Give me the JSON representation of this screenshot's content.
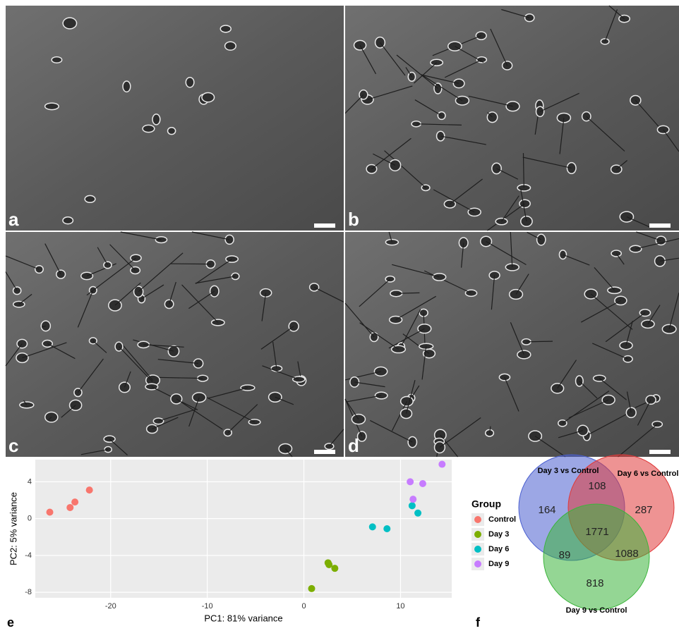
{
  "micrographs": [
    {
      "label": "a"
    },
    {
      "label": "b"
    },
    {
      "label": "c"
    },
    {
      "label": "d"
    }
  ],
  "chart_data": [
    {
      "type": "scatter",
      "panel_label": "e",
      "x_label": "PC1: 81% variance",
      "y_label": "PC2: 5% variance",
      "legend_title": "Group",
      "legend": "right",
      "grid": true,
      "xlim": [
        -27.8,
        15.3
      ],
      "xticks": [
        -20,
        -10,
        0,
        10
      ],
      "ylim": [
        -8.6,
        6.4
      ],
      "yticks": [
        -8,
        -4,
        0,
        4
      ],
      "series": [
        {
          "name": "Control",
          "color": "#F8766D",
          "x": [
            -26.3,
            -24.2,
            -23.7,
            -22.2
          ],
          "values": [
            0.7,
            1.2,
            1.8,
            3.1
          ]
        },
        {
          "name": "Day 3",
          "color": "#7CAE00",
          "x": [
            0.8,
            2.5,
            2.6,
            3.2
          ],
          "values": [
            -7.6,
            -4.8,
            -5.0,
            -5.4
          ]
        },
        {
          "name": "Day 6",
          "color": "#00BFC4",
          "x": [
            7.1,
            8.6,
            11.2,
            11.8
          ],
          "values": [
            -0.9,
            -1.1,
            1.4,
            0.6
          ]
        },
        {
          "name": "Day 9",
          "color": "#C77CFF",
          "x": [
            11.0,
            11.3,
            12.3,
            14.3
          ],
          "values": [
            4.0,
            2.1,
            3.8,
            5.9
          ]
        }
      ]
    },
    {
      "type": "venn",
      "panel_label": "f",
      "sets": [
        {
          "name": "Day 3 vs Control",
          "color": "#4a5fd0"
        },
        {
          "name": "Day 6 vs Control",
          "color": "#e03a3a"
        },
        {
          "name": "Day 9 vs Control",
          "color": "#3cb43c"
        }
      ],
      "values": [
        164,
        287,
        818,
        108,
        89,
        1088,
        1771
      ]
    }
  ]
}
